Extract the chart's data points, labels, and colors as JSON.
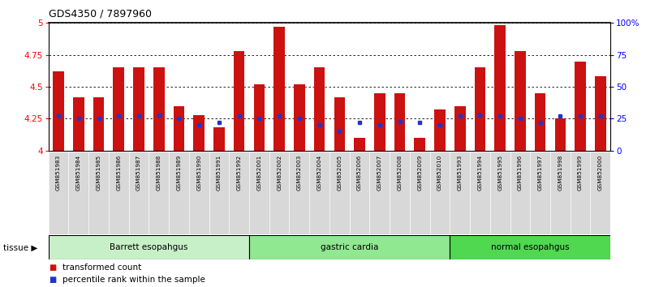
{
  "title": "GDS4350 / 7897960",
  "samples": [
    "GSM851983",
    "GSM851984",
    "GSM851985",
    "GSM851986",
    "GSM851987",
    "GSM851988",
    "GSM851989",
    "GSM851990",
    "GSM851991",
    "GSM851992",
    "GSM852001",
    "GSM852002",
    "GSM852003",
    "GSM852004",
    "GSM852005",
    "GSM852006",
    "GSM852007",
    "GSM852008",
    "GSM852009",
    "GSM852010",
    "GSM851993",
    "GSM851994",
    "GSM851995",
    "GSM851996",
    "GSM851997",
    "GSM851998",
    "GSM851999",
    "GSM852000"
  ],
  "bar_values": [
    4.62,
    4.42,
    4.42,
    4.65,
    4.65,
    4.65,
    4.35,
    4.28,
    4.18,
    4.78,
    4.52,
    4.97,
    4.52,
    4.65,
    4.42,
    4.1,
    4.45,
    4.45,
    4.1,
    4.32,
    4.35,
    4.65,
    4.98,
    4.78,
    4.45,
    4.25,
    4.7,
    4.58
  ],
  "percentile_pct": [
    27,
    25,
    25,
    27,
    27,
    28,
    25,
    20,
    22,
    27,
    25,
    27,
    25,
    20,
    15,
    22,
    20,
    23,
    22,
    20,
    27,
    28,
    27,
    25,
    22,
    27,
    27,
    27
  ],
  "groups": [
    {
      "label": "Barrett esopahgus",
      "start": 0,
      "end": 10,
      "color": "#c8f0c8"
    },
    {
      "label": "gastric cardia",
      "start": 10,
      "end": 20,
      "color": "#90e890"
    },
    {
      "label": "normal esopahgus",
      "start": 20,
      "end": 28,
      "color": "#50d850"
    }
  ],
  "ymin": 4.0,
  "ymax": 5.0,
  "yticks_left": [
    4.0,
    4.25,
    4.5,
    4.75,
    5.0
  ],
  "ytick_labels_left": [
    "4",
    "4.25",
    "4.5",
    "4.75",
    "5"
  ],
  "yticks_right": [
    0,
    25,
    50,
    75,
    100
  ],
  "ytick_labels_right": [
    "0",
    "25",
    "50",
    "75",
    "100%"
  ],
  "bar_color": "#cc1111",
  "dot_color": "#2233cc",
  "label_transformed": "transformed count",
  "label_percentile": "percentile rank within the sample"
}
